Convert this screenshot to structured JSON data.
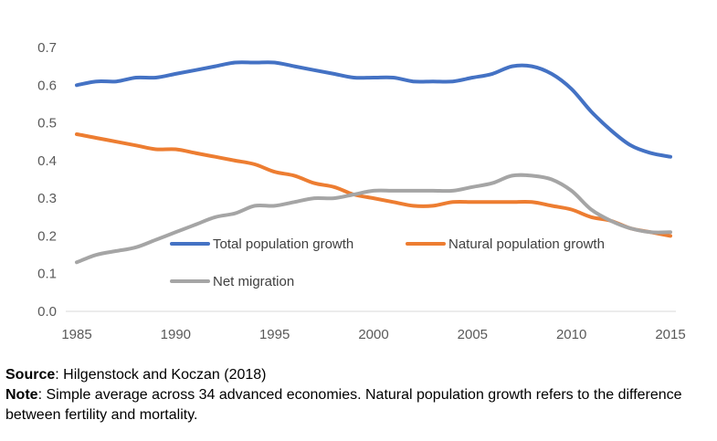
{
  "chart_data": {
    "type": "line",
    "title": "",
    "xlabel": "",
    "ylabel": "",
    "xlim": [
      1985,
      2015
    ],
    "ylim": [
      0,
      0.7
    ],
    "xticks": [
      1985,
      1990,
      1995,
      2000,
      2005,
      2010,
      2015
    ],
    "yticks": [
      0.0,
      0.1,
      0.2,
      0.3,
      0.4,
      0.5,
      0.6,
      0.7
    ],
    "ytick_labels": [
      "0.0",
      "0.1",
      "0.2",
      "0.3",
      "0.4",
      "0.5",
      "0.6",
      "0.7"
    ],
    "grid": false,
    "legend_placement": "inside-bottom",
    "x": [
      1985,
      1986,
      1987,
      1988,
      1989,
      1990,
      1991,
      1992,
      1993,
      1994,
      1995,
      1996,
      1997,
      1998,
      1999,
      2000,
      2001,
      2002,
      2003,
      2004,
      2005,
      2006,
      2007,
      2008,
      2009,
      2010,
      2011,
      2012,
      2013,
      2014,
      2015
    ],
    "series": [
      {
        "name": "Total population growth",
        "color": "#4472C4",
        "values": [
          0.6,
          0.61,
          0.61,
          0.62,
          0.62,
          0.63,
          0.64,
          0.65,
          0.66,
          0.66,
          0.66,
          0.65,
          0.64,
          0.63,
          0.62,
          0.62,
          0.62,
          0.61,
          0.61,
          0.61,
          0.62,
          0.63,
          0.65,
          0.65,
          0.63,
          0.59,
          0.53,
          0.48,
          0.44,
          0.42,
          0.41
        ]
      },
      {
        "name": "Natural population growth",
        "color": "#ED7D31",
        "values": [
          0.47,
          0.46,
          0.45,
          0.44,
          0.43,
          0.43,
          0.42,
          0.41,
          0.4,
          0.39,
          0.37,
          0.36,
          0.34,
          0.33,
          0.31,
          0.3,
          0.29,
          0.28,
          0.28,
          0.29,
          0.29,
          0.29,
          0.29,
          0.29,
          0.28,
          0.27,
          0.25,
          0.24,
          0.22,
          0.21,
          0.2
        ]
      },
      {
        "name": "Net migration",
        "color": "#A5A5A5",
        "values": [
          0.13,
          0.15,
          0.16,
          0.17,
          0.19,
          0.21,
          0.23,
          0.25,
          0.26,
          0.28,
          0.28,
          0.29,
          0.3,
          0.3,
          0.31,
          0.32,
          0.32,
          0.32,
          0.32,
          0.32,
          0.33,
          0.34,
          0.36,
          0.36,
          0.35,
          0.32,
          0.27,
          0.24,
          0.22,
          0.21,
          0.21
        ]
      }
    ]
  },
  "notes": {
    "source_label": "Source",
    "source_text": ": Hilgenstock and Koczan (2018)",
    "note_label": "Note",
    "note_text": ": Simple average across 34 advanced economies. Natural population growth refers to the difference between fertility and mortality."
  }
}
